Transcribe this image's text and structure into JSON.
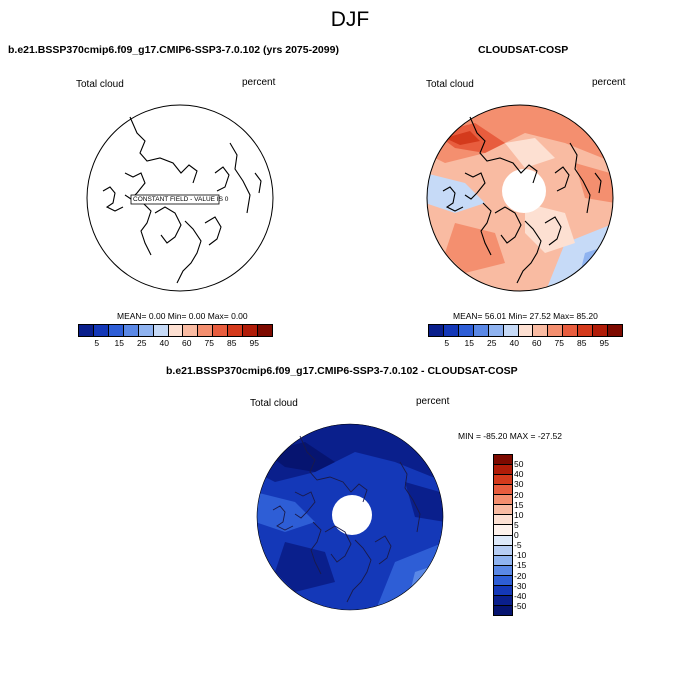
{
  "figure": {
    "title": "DJF"
  },
  "panels": [
    {
      "id": "model",
      "title": "b.e21.BSSP370cmip6.f09_g17.CMIP6-SSP3-7.0.102 (yrs 2075-2099)",
      "left_label": "Total cloud",
      "right_label": "percent",
      "annotation": "CONSTANT FIELD - VALUE IS 0",
      "stats": "MEAN=   0.00  Min=   0.00  Max=   0.00"
    },
    {
      "id": "obs",
      "title": "CLOUDSAT-COSP",
      "left_label": "Total cloud",
      "right_label": "percent",
      "stats": "MEAN=  56.01  Min=  27.52  Max=  85.20"
    },
    {
      "id": "diff",
      "title": "b.e21.BSSP370cmip6.f09_g17.CMIP6-SSP3-7.0.102 - CLOUDSAT-COSP",
      "left_label": "Total cloud",
      "right_label": "percent",
      "minmax": "MIN = -85.20 MAX = -27.52"
    }
  ],
  "colorbars": {
    "absolute": {
      "ticks": [
        "5",
        "15",
        "25",
        "40",
        "60",
        "75",
        "85",
        "95"
      ],
      "colors": [
        "#0a1f8c",
        "#1438b8",
        "#2e5ed6",
        "#5a88e6",
        "#8fb3f0",
        "#c6daf7",
        "#fde0d2",
        "#f9bba2",
        "#f48f6f",
        "#e85d3e",
        "#d43a1c",
        "#b01c08",
        "#7d0a00"
      ]
    },
    "difference": {
      "ticks": [
        "50",
        "40",
        "30",
        "20",
        "15",
        "10",
        "5",
        "0",
        "-5",
        "-10",
        "-15",
        "-20",
        "-30",
        "-40",
        "-50"
      ],
      "colors": [
        "#7d0a00",
        "#b01c08",
        "#d43a1c",
        "#e85d3e",
        "#f48f6f",
        "#f9bba2",
        "#fde0d2",
        "#fef2ec",
        "#dde9fa",
        "#b6cdf4",
        "#8fb3f0",
        "#5a88e6",
        "#2e5ed6",
        "#1438b8",
        "#0a1f8c",
        "#061470"
      ]
    }
  },
  "chart_data": [
    {
      "type": "heatmap",
      "title": "b.e21.BSSP370cmip6.f09_g17.CMIP6-SSP3-7.0.102 (yrs 2075-2099)",
      "field": "Total cloud",
      "units": "percent",
      "projection": "north polar stereographic",
      "mean": 0.0,
      "min": 0.0,
      "max": 0.0,
      "constant_value": 0,
      "levels": [
        5,
        15,
        25,
        40,
        60,
        75,
        85,
        95
      ]
    },
    {
      "type": "heatmap",
      "title": "CLOUDSAT-COSP",
      "field": "Total cloud",
      "units": "percent",
      "projection": "north polar stereographic",
      "mean": 56.01,
      "min": 27.52,
      "max": 85.2,
      "levels": [
        5,
        15,
        25,
        40,
        60,
        75,
        85,
        95
      ]
    },
    {
      "type": "heatmap",
      "title": "b.e21.BSSP370cmip6.f09_g17.CMIP6-SSP3-7.0.102 - CLOUDSAT-COSP",
      "field": "Total cloud",
      "units": "percent",
      "projection": "north polar stereographic",
      "min": -85.2,
      "max": -27.52,
      "levels": [
        50,
        40,
        30,
        20,
        15,
        10,
        5,
        0,
        -5,
        -10,
        -15,
        -20,
        -30,
        -40,
        -50
      ]
    }
  ]
}
